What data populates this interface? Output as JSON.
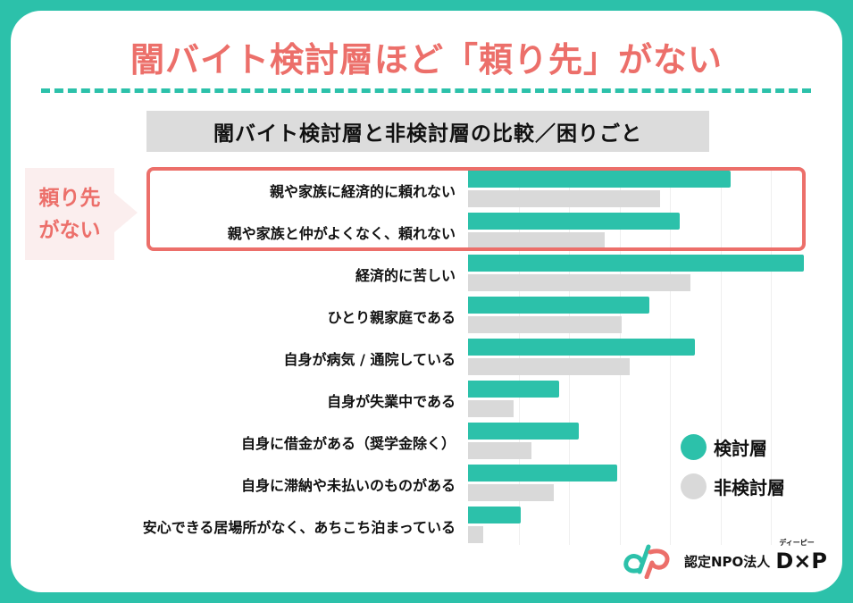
{
  "title": "闇バイト検討層ほど「頼り先」がない",
  "subtitle": "闇バイト検討層と非検討層の比較／困りごと",
  "callout": {
    "line1": "頼り先",
    "line2": "がない"
  },
  "legend": [
    {
      "label": "検討層",
      "color": "#2cc1aa"
    },
    {
      "label": "非検討層",
      "color": "#d9d9d9"
    }
  ],
  "logo": {
    "text": "認定NPO法人",
    "brand": "D×P",
    "ruby": "ディーピー"
  },
  "colors": {
    "accent": "#ec6f6a",
    "teal": "#2cc1aa",
    "gray": "#d9d9d9"
  },
  "chart_data": {
    "type": "bar",
    "orientation": "horizontal",
    "title": "闇バイト検討層と非検討層の比較／困りごと",
    "xlabel": "",
    "ylabel": "",
    "units": "relative (gridline units, no axis labels shown)",
    "xlim": [
      0,
      7
    ],
    "grid": true,
    "legend_position": "right-bottom",
    "categories": [
      "親や家族に経済的に頼れない",
      "親や家族と仲がよくなく、頼れない",
      "経済的に苦しい",
      "ひとり親家庭である",
      "自身が病気 / 通院している",
      "自身が失業中である",
      "自身に借金がある（奨学金除く）",
      "自身に滞納や未払いのものがある",
      "安心できる居場所がなく、あちこち泊まっている"
    ],
    "series": [
      {
        "name": "検討層",
        "color": "#2cc1aa",
        "values": [
          5.2,
          4.2,
          6.65,
          3.6,
          4.5,
          1.8,
          2.2,
          2.95,
          1.05
        ]
      },
      {
        "name": "非検討層",
        "color": "#d9d9d9",
        "values": [
          3.8,
          2.7,
          4.4,
          3.05,
          3.2,
          0.9,
          1.25,
          1.7,
          0.3
        ]
      }
    ],
    "annotations": [
      {
        "text": "頼り先がない",
        "applies_to": [
          0,
          1
        ]
      }
    ]
  }
}
